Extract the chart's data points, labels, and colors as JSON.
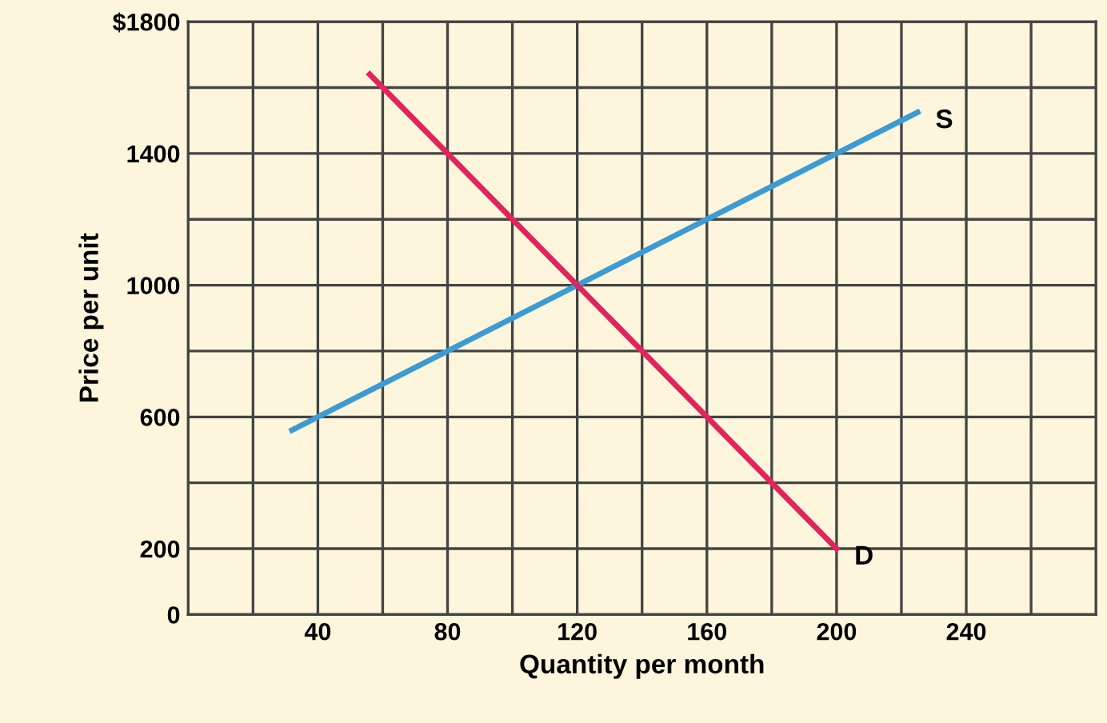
{
  "chart_data": {
    "type": "line",
    "xlabel": "Quantity per month",
    "ylabel": "Price per unit",
    "series": [
      {
        "name": "S",
        "color": "#3d9bd3",
        "x": [
          32,
          225
        ],
        "values": [
          560,
          1525
        ]
      },
      {
        "name": "D",
        "color": "#e2245a",
        "x": [
          56,
          200
        ],
        "values": [
          1640,
          200
        ]
      }
    ],
    "xlim": [
      0,
      280
    ],
    "ylim": [
      0,
      1800
    ],
    "xticks": [
      {
        "value": 20,
        "label": null
      },
      40,
      {
        "value": 60,
        "label": null
      },
      80,
      {
        "value": 100,
        "label": null
      },
      120,
      {
        "value": 140,
        "label": null
      },
      160,
      {
        "value": 180,
        "label": null
      },
      200,
      {
        "value": 220,
        "label": null
      },
      240,
      {
        "value": 260,
        "label": null
      }
    ],
    "yticks": [
      0,
      200,
      {
        "value": 400,
        "label": null
      },
      600,
      {
        "value": 800,
        "label": null
      },
      1000,
      {
        "value": 1200,
        "label": null
      },
      1400,
      {
        "value": 1600,
        "label": null
      },
      {
        "value": 1800,
        "label": "$1800"
      }
    ],
    "grid": true,
    "marker": "none",
    "line_style": "solid"
  }
}
